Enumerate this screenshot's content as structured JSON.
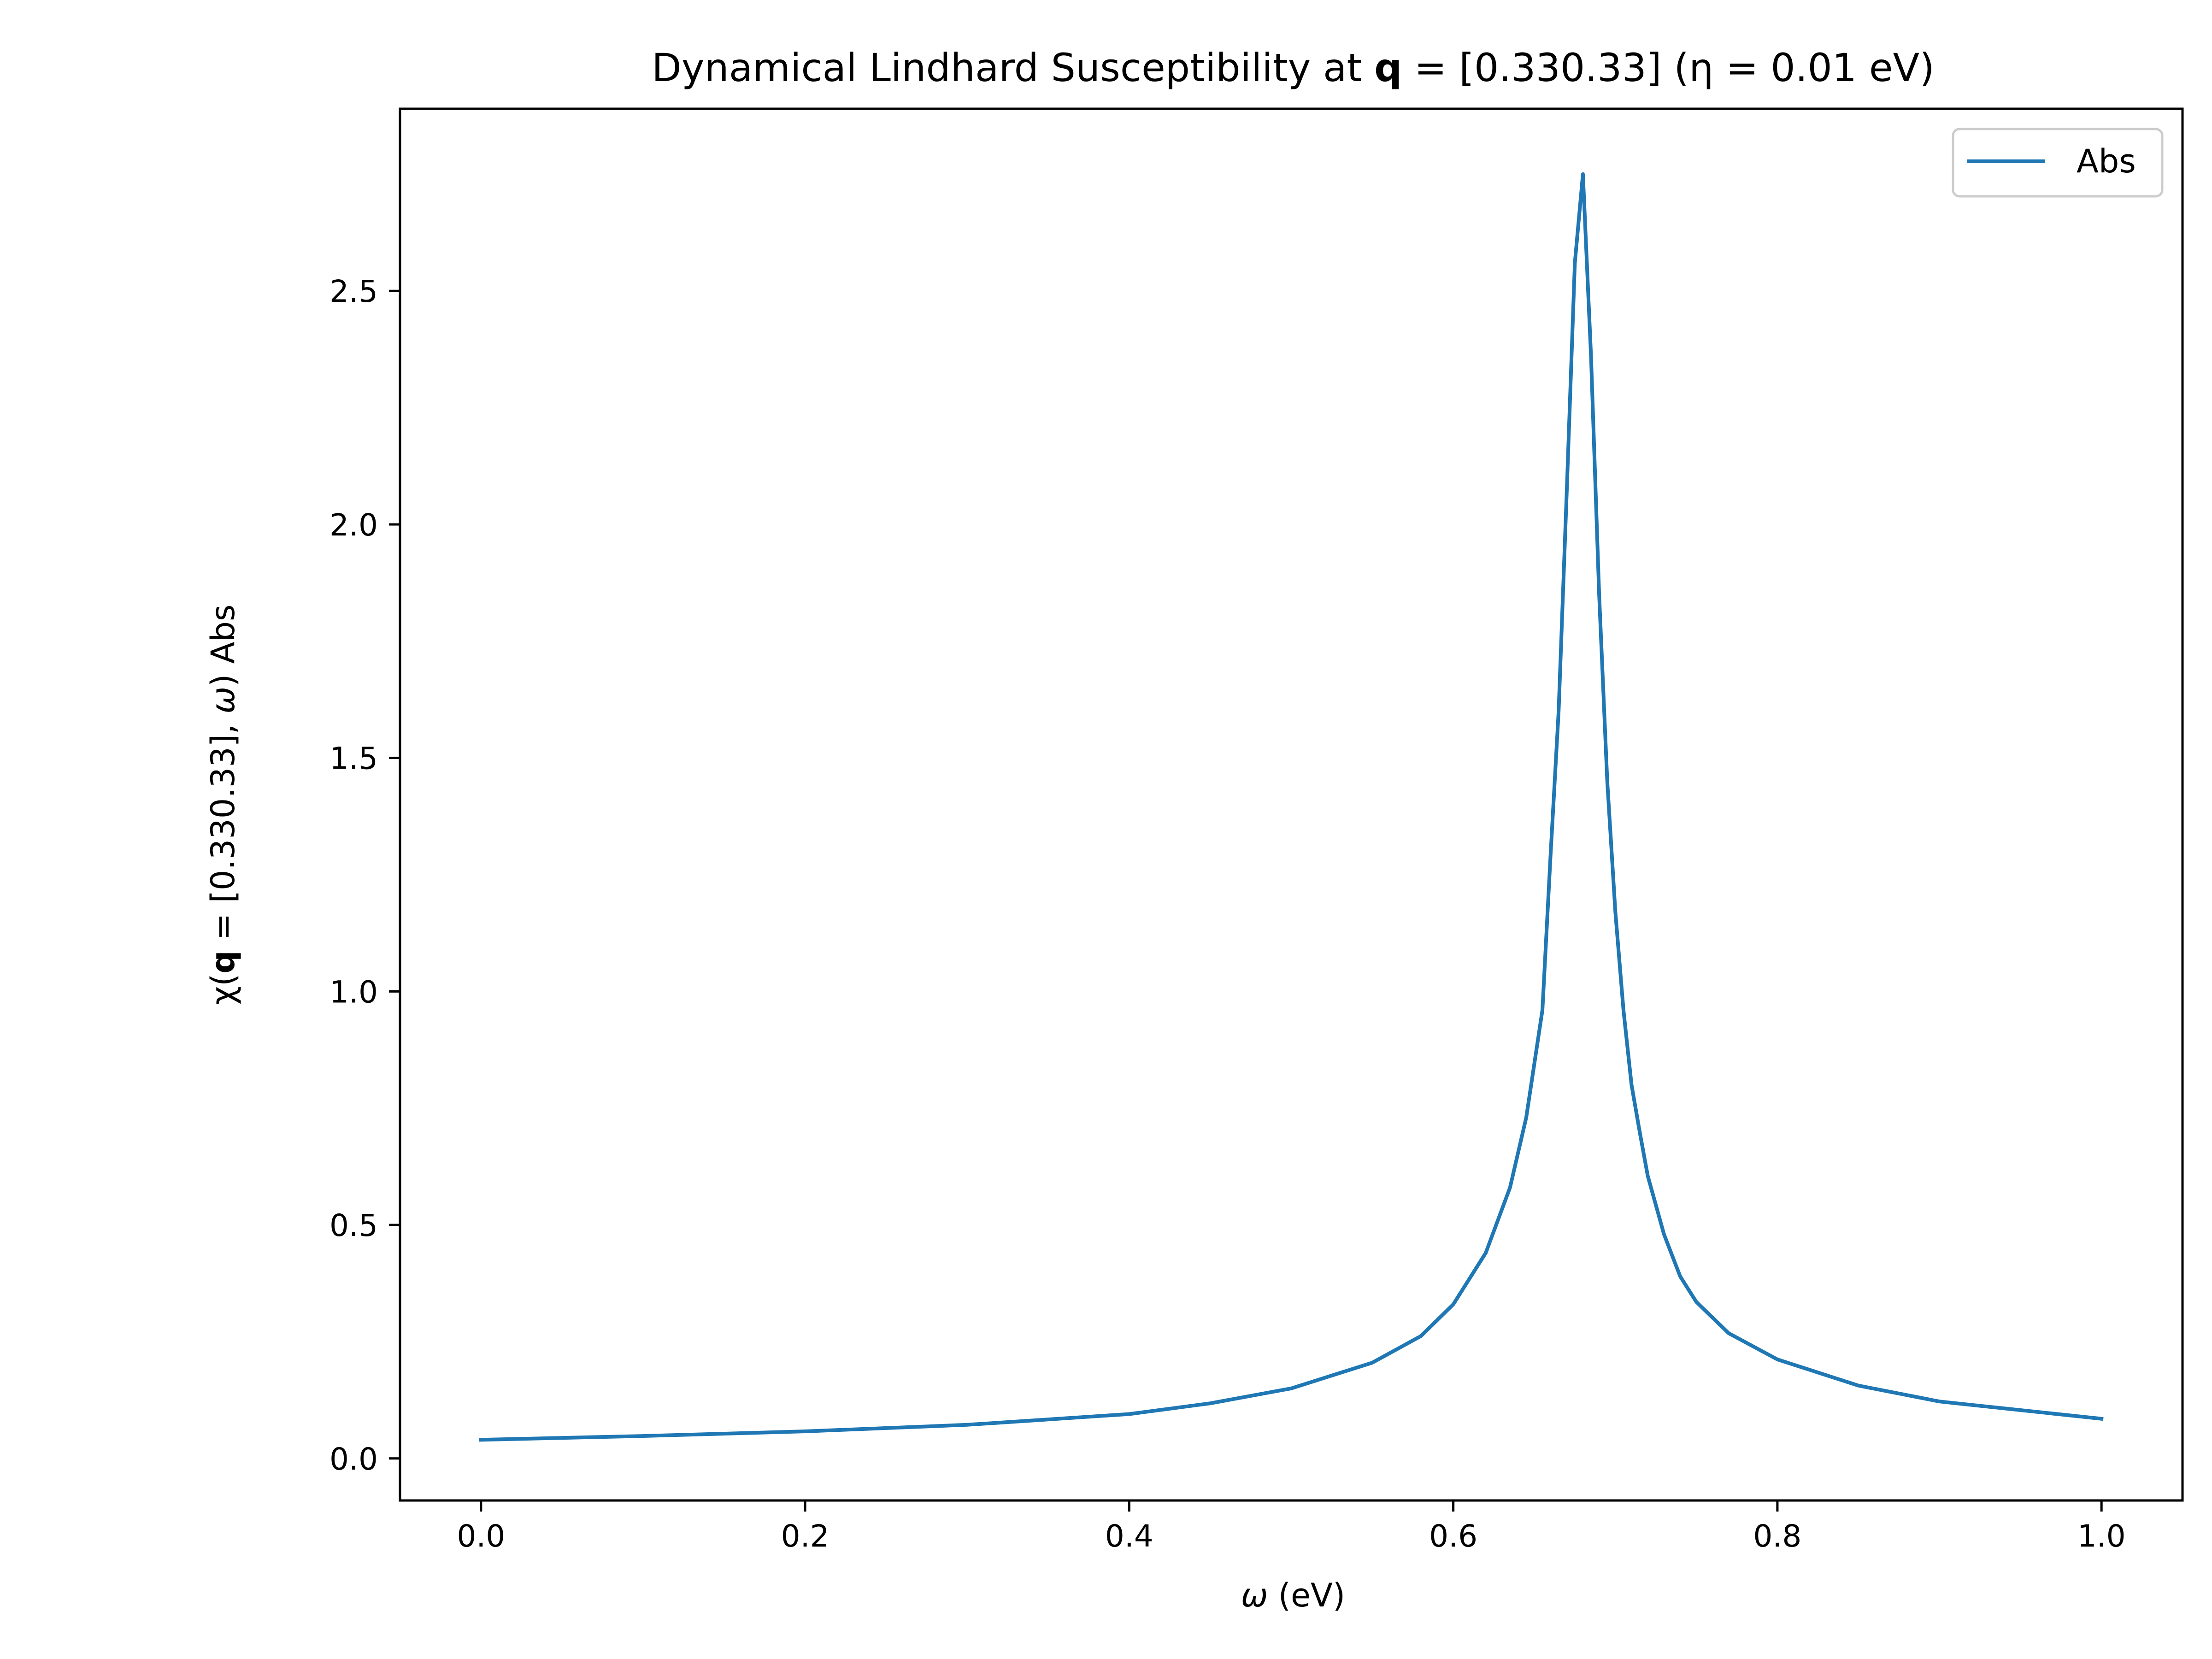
{
  "colors": {
    "series_line": "#1f77b4",
    "axes": "#000000",
    "background": "#ffffff",
    "legend_border": "#cccccc"
  },
  "chart_data": {
    "type": "line",
    "title": {
      "prefix": "Dynamical Lindhard Susceptibility at ",
      "bold_symbol": "q",
      "suffix": " = [0.330.33] (η = 0.01 eV)"
    },
    "xlabel": {
      "italic_symbol": "ω",
      "rest": " (eV)"
    },
    "ylabel": {
      "part1": "χ(",
      "bold_symbol": "q",
      "part2": " = [0.330.33],  ",
      "italic_symbol": "ω",
      "part3": ") Abs"
    },
    "xlim": [
      -0.05,
      1.05
    ],
    "ylim": [
      -0.09,
      2.89
    ],
    "xticks": [
      {
        "value": 0.0,
        "label": "0.0"
      },
      {
        "value": 0.2,
        "label": "0.2"
      },
      {
        "value": 0.4,
        "label": "0.4"
      },
      {
        "value": 0.6,
        "label": "0.6"
      },
      {
        "value": 0.8,
        "label": "0.8"
      },
      {
        "value": 1.0,
        "label": "1.0"
      }
    ],
    "yticks": [
      {
        "value": 0.0,
        "label": "0.0"
      },
      {
        "value": 0.5,
        "label": "0.5"
      },
      {
        "value": 1.0,
        "label": "1.0"
      },
      {
        "value": 1.5,
        "label": "1.5"
      },
      {
        "value": 2.0,
        "label": "2.0"
      },
      {
        "value": 2.5,
        "label": "2.5"
      }
    ],
    "grid": false,
    "legend_position": "top-right",
    "series": [
      {
        "name": "Abs",
        "x": [
          0.0,
          0.1,
          0.2,
          0.3,
          0.4,
          0.45,
          0.5,
          0.55,
          0.58,
          0.6,
          0.62,
          0.635,
          0.645,
          0.655,
          0.66,
          0.665,
          0.67,
          0.675,
          0.68,
          0.685,
          0.69,
          0.695,
          0.7,
          0.705,
          0.71,
          0.715,
          0.72,
          0.73,
          0.74,
          0.75,
          0.77,
          0.8,
          0.85,
          0.9,
          1.0
        ],
        "y": [
          0.04,
          0.048,
          0.058,
          0.072,
          0.095,
          0.118,
          0.15,
          0.205,
          0.262,
          0.33,
          0.44,
          0.58,
          0.73,
          0.96,
          1.29,
          1.6,
          2.07,
          2.56,
          2.75,
          2.36,
          1.85,
          1.45,
          1.17,
          0.96,
          0.8,
          0.7,
          0.605,
          0.48,
          0.39,
          0.335,
          0.268,
          0.212,
          0.156,
          0.122,
          0.085
        ]
      }
    ]
  }
}
